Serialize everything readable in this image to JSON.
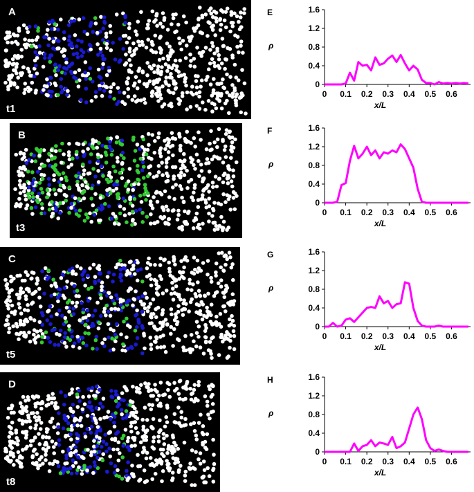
{
  "panels": [
    {
      "label": "A",
      "time": "t1"
    },
    {
      "label": "B",
      "time": "t3"
    },
    {
      "label": "C",
      "time": "t5"
    },
    {
      "label": "D",
      "time": "t8"
    }
  ],
  "chart_data": [
    {
      "type": "line",
      "panel_label": "E",
      "x_label": "x/L",
      "y_label": "ρ",
      "xlim": [
        0,
        0.69
      ],
      "ylim": [
        0,
        1.6
      ],
      "xticks": [
        0,
        0.1,
        0.2,
        0.3,
        0.4,
        0.5,
        0.6
      ],
      "yticks": [
        0,
        0.4,
        0.8,
        1.2,
        1.6
      ],
      "x": [
        0,
        0.02,
        0.04,
        0.06,
        0.08,
        0.1,
        0.12,
        0.14,
        0.16,
        0.18,
        0.2,
        0.22,
        0.24,
        0.26,
        0.28,
        0.3,
        0.32,
        0.34,
        0.36,
        0.38,
        0.4,
        0.42,
        0.44,
        0.46,
        0.48,
        0.5,
        0.52,
        0.54,
        0.56,
        0.58,
        0.6,
        0.62,
        0.64,
        0.66,
        0.68
      ],
      "series": [
        {
          "color": "#ff00ff",
          "values": [
            0,
            0,
            0,
            0,
            0,
            0.02,
            0.25,
            0.08,
            0.48,
            0.4,
            0.42,
            0.3,
            0.58,
            0.42,
            0.45,
            0.55,
            0.62,
            0.48,
            0.63,
            0.45,
            0.3,
            0.4,
            0.32,
            0.1,
            0.03,
            0.03,
            0,
            0.05,
            0.02,
            0.03,
            0.02,
            0.03,
            0.02,
            0.03,
            0.02
          ]
        }
      ]
    },
    {
      "type": "line",
      "panel_label": "F",
      "x_label": "x/L",
      "y_label": "ρ",
      "xlim": [
        0,
        0.69
      ],
      "ylim": [
        0,
        1.6
      ],
      "xticks": [
        0,
        0.1,
        0.2,
        0.3,
        0.4,
        0.5,
        0.6
      ],
      "yticks": [
        0,
        0.4,
        0.8,
        1.2,
        1.6
      ],
      "x": [
        0,
        0.02,
        0.04,
        0.06,
        0.08,
        0.1,
        0.12,
        0.14,
        0.16,
        0.18,
        0.2,
        0.22,
        0.24,
        0.26,
        0.28,
        0.3,
        0.32,
        0.34,
        0.36,
        0.38,
        0.4,
        0.42,
        0.44,
        0.46,
        0.48,
        0.5,
        0.52,
        0.54,
        0.56,
        0.58,
        0.6,
        0.62,
        0.64,
        0.66,
        0.68
      ],
      "series": [
        {
          "color": "#ff00ff",
          "values": [
            0,
            0,
            0,
            0.02,
            0.38,
            0.42,
            0.9,
            1.22,
            0.95,
            1.05,
            1.2,
            1.02,
            1.12,
            0.95,
            1.08,
            1.05,
            1.12,
            1.08,
            1.25,
            1.15,
            0.95,
            0.75,
            0.3,
            0.02,
            0,
            0,
            0,
            0,
            0,
            0,
            0,
            0,
            0,
            0,
            0
          ]
        }
      ]
    },
    {
      "type": "line",
      "panel_label": "G",
      "x_label": "x/L",
      "y_label": "ρ",
      "xlim": [
        0,
        0.69
      ],
      "ylim": [
        0,
        1.6
      ],
      "xticks": [
        0,
        0.1,
        0.2,
        0.3,
        0.4,
        0.5,
        0.6
      ],
      "yticks": [
        0,
        0.4,
        0.8,
        1.2,
        1.6
      ],
      "x": [
        0,
        0.02,
        0.04,
        0.06,
        0.08,
        0.1,
        0.12,
        0.14,
        0.16,
        0.18,
        0.2,
        0.22,
        0.24,
        0.26,
        0.28,
        0.3,
        0.32,
        0.34,
        0.36,
        0.38,
        0.4,
        0.42,
        0.44,
        0.46,
        0.48,
        0.5,
        0.52,
        0.54,
        0.56,
        0.58,
        0.6,
        0.62,
        0.64,
        0.66,
        0.68
      ],
      "series": [
        {
          "color": "#ff00ff",
          "values": [
            0,
            0,
            0.08,
            0,
            0.02,
            0.15,
            0.18,
            0.1,
            0.2,
            0.3,
            0.4,
            0.42,
            0.4,
            0.65,
            0.5,
            0.55,
            0.4,
            0.48,
            0.5,
            0.95,
            0.92,
            0.4,
            0.12,
            0.02,
            0,
            0,
            0,
            0.02,
            0,
            0,
            0,
            0,
            0,
            0,
            0
          ]
        }
      ]
    },
    {
      "type": "line",
      "panel_label": "H",
      "x_label": "x/L",
      "y_label": "ρ",
      "xlim": [
        0,
        0.69
      ],
      "ylim": [
        0,
        1.6
      ],
      "xticks": [
        0,
        0.1,
        0.2,
        0.3,
        0.4,
        0.5,
        0.6
      ],
      "yticks": [
        0,
        0.4,
        0.8,
        1.2,
        1.6
      ],
      "x": [
        0,
        0.02,
        0.04,
        0.06,
        0.08,
        0.1,
        0.12,
        0.14,
        0.16,
        0.18,
        0.2,
        0.22,
        0.24,
        0.26,
        0.28,
        0.3,
        0.32,
        0.34,
        0.36,
        0.38,
        0.4,
        0.42,
        0.44,
        0.46,
        0.48,
        0.5,
        0.52,
        0.54,
        0.56,
        0.58,
        0.6,
        0.62,
        0.64,
        0.66,
        0.68
      ],
      "series": [
        {
          "color": "#ff00ff",
          "values": [
            0,
            0,
            0,
            0,
            0,
            0,
            0,
            0.18,
            0.02,
            0.12,
            0.15,
            0.25,
            0.12,
            0.2,
            0.18,
            0.15,
            0.32,
            0.08,
            0.12,
            0.2,
            0.5,
            0.8,
            0.95,
            0.7,
            0.25,
            0.08,
            0.02,
            0.05,
            0.02,
            0,
            0,
            0,
            0,
            0,
            0
          ]
        }
      ]
    }
  ]
}
